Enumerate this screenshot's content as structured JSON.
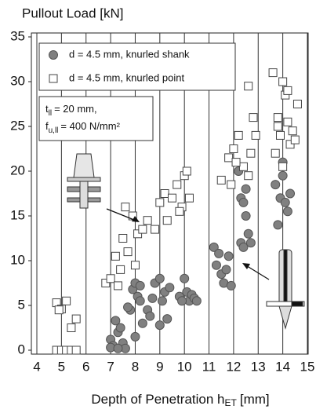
{
  "chart_data": {
    "type": "scatter",
    "title": "Pullout Load [kN]",
    "x_label": {
      "text": "Depth of Penetration h",
      "subscript": "ET",
      "suffix": "[mm]"
    },
    "annotation": {
      "line1": {
        "text": "t",
        "subscript": "ll",
        "suffix": "= 20 mm,"
      },
      "line2": {
        "text": "f",
        "subscript": "u,ll",
        "suffix": "= 400 N/mm²"
      }
    },
    "xlim": [
      4,
      15
    ],
    "xticks": [
      4,
      5,
      6,
      7,
      8,
      9,
      10,
      11,
      12,
      13,
      14,
      15
    ],
    "ylim": [
      0,
      35
    ],
    "yticks": [
      0,
      5,
      10,
      15,
      20,
      25,
      30,
      35
    ],
    "grid": "x",
    "legend_position": "upper left",
    "series": [
      {
        "name": "d = 4.5 mm, knurled shank",
        "marker": "circle",
        "color": "#808080",
        "x": [
          7.0,
          7.1,
          7.2,
          7.3,
          7.4,
          7.5,
          7.6,
          7.0,
          7.3,
          7.8,
          7.9,
          8.0,
          8.1,
          8.2,
          8.3,
          8.0,
          7.7,
          8.2,
          8.5,
          8.6,
          8.8,
          9.0,
          9.1,
          9.2,
          9.0,
          9.3,
          8.7,
          9.4,
          9.8,
          10.0,
          10.1,
          10.2,
          10.3,
          10.4,
          10.5,
          9.9,
          11.2,
          11.3,
          11.5,
          11.6,
          11.7,
          11.8,
          11.4,
          11.9,
          12.2,
          12.3,
          12.4,
          12.5,
          12.3,
          12.4,
          12.6,
          12.5,
          12.7,
          13.8,
          13.9,
          14.0,
          14.1,
          14.2,
          14.0,
          14.3,
          13.7
        ],
        "values": [
          1.2,
          0.5,
          3.3,
          2.0,
          2.5,
          0.8,
          0.2,
          0.3,
          0.2,
          4.5,
          6.8,
          7.5,
          6.0,
          5.5,
          3.0,
          1.5,
          4.8,
          7.2,
          4.5,
          3.8,
          7.5,
          8.0,
          5.5,
          6.5,
          2.8,
          3.5,
          5.8,
          7.0,
          6.0,
          8.0,
          6.5,
          5.5,
          6.2,
          5.8,
          5.5,
          5.5,
          11.5,
          9.5,
          8.5,
          7.5,
          9.0,
          10.5,
          10.8,
          7.2,
          20,
          17,
          16.5,
          18,
          12,
          11.5,
          13,
          15,
          12,
          14,
          17,
          19.5,
          16.5,
          15.5,
          21,
          17.5,
          18.5
        ]
      },
      {
        "name": "d = 4.5 mm, knurled point",
        "marker": "square",
        "color": "#ffffff",
        "x": [
          4.8,
          5.0,
          5.2,
          5.4,
          5.6,
          4.9,
          4.8,
          5.0,
          5.2,
          5.4,
          5.6,
          6.8,
          7.0,
          7.2,
          7.4,
          7.5,
          7.6,
          7.7,
          7.9,
          8.1,
          8.3,
          8.5,
          8.0,
          7.3,
          8.8,
          9.0,
          9.2,
          9.3,
          9.5,
          9.7,
          9.9,
          10.0,
          10.1,
          10.2,
          9.8,
          11.5,
          11.8,
          12.0,
          12.2,
          12.4,
          12.6,
          12.8,
          12.9,
          11.9,
          12.7,
          12.1,
          12.6,
          13.6,
          13.8,
          14.0,
          14.1,
          14.2,
          14.3,
          14.4,
          14.6,
          13.7,
          13.9,
          14.0,
          14.2,
          13.8,
          14.5
        ],
        "values": [
          5.3,
          4.6,
          5.5,
          2.5,
          3.5,
          4.5,
          0,
          0,
          0,
          0,
          0,
          7.5,
          8.0,
          10.5,
          9.0,
          12.5,
          16.0,
          11.0,
          15.0,
          13.0,
          13.5,
          14.5,
          9.5,
          7.2,
          13.5,
          16.5,
          17.5,
          14.5,
          17.0,
          18.5,
          16.0,
          19.5,
          20.0,
          17.0,
          15.5,
          19.0,
          21.5,
          22.5,
          24.0,
          20.5,
          29.5,
          26.0,
          24.0,
          18.5,
          22.0,
          21.0,
          19.5,
          31.0,
          26.0,
          30.0,
          28.5,
          25.5,
          23.0,
          24.5,
          27.5,
          22.0,
          24.0,
          20.5,
          29.0,
          25.0,
          23.5
        ]
      }
    ]
  }
}
